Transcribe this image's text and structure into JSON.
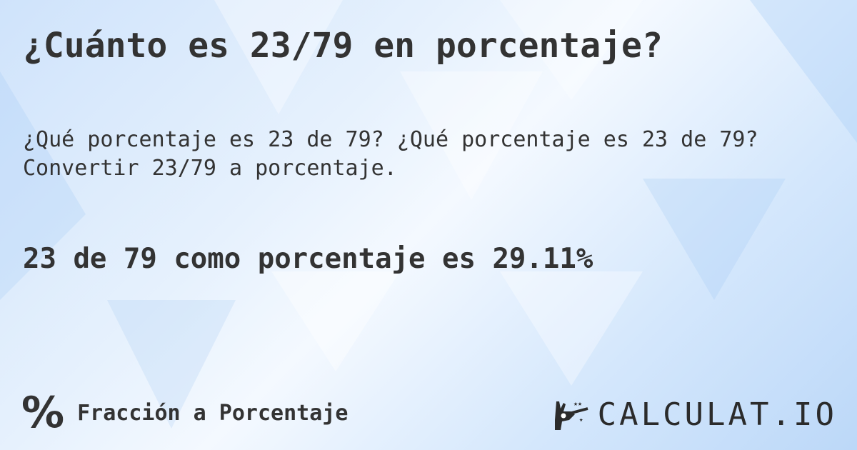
{
  "title": "¿Cuánto es 23/79 en porcentaje?",
  "subtitle_line1": "¿Qué porcentaje es 23 de 79? ¿Qué porcentaje es 23 de 79?",
  "subtitle_line2": "Convertir 23/79 a porcentaje.",
  "result": "23 de 79 como porcentaje es 29.11%",
  "footer": {
    "icon": "percent-icon",
    "icon_glyph": "%",
    "label": "Fracción a Porcentaje"
  },
  "logo": {
    "text": "CALCULAT.IO",
    "icon": "magic-hand-icon"
  },
  "colors": {
    "text": "#333333",
    "background": "#d4e7fc"
  }
}
